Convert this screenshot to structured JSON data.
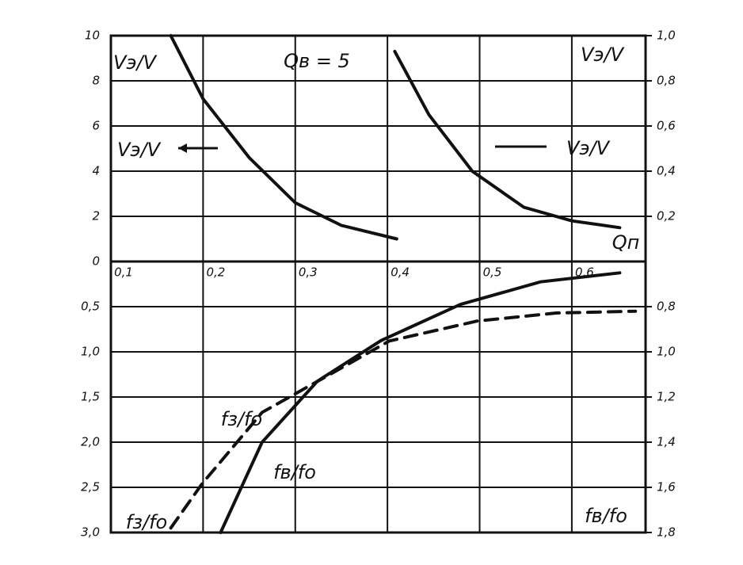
{
  "chart_data": [
    {
      "type": "line",
      "title": "Qв = 5",
      "xlabel": "Qп",
      "ylabel": "Vэ/V",
      "y2label": "Vэ/V",
      "xlim": [
        0.1,
        0.68
      ],
      "xticks": [
        {
          "value": 0.1,
          "label": "0,1"
        },
        {
          "value": 0.2,
          "label": "0,2"
        },
        {
          "value": 0.3,
          "label": "0,3"
        },
        {
          "value": 0.4,
          "label": "0,4"
        },
        {
          "value": 0.5,
          "label": "0,5"
        },
        {
          "value": 0.6,
          "label": "0,6"
        }
      ],
      "ylim": [
        0,
        10
      ],
      "yticks": [
        0,
        2,
        4,
        6,
        8,
        10
      ],
      "y2lim": [
        0,
        1.0
      ],
      "y2ticks": [
        {
          "value": 0.2,
          "label": "0,2"
        },
        {
          "value": 0.4,
          "label": "0,4"
        },
        {
          "value": 0.6,
          "label": "0,6"
        },
        {
          "value": 0.8,
          "label": "0,8"
        },
        {
          "value": 1.0,
          "label": "1,0"
        }
      ],
      "grid": true,
      "series": [
        {
          "name": "Vэ/V",
          "color": "#111111",
          "style": "solid",
          "axis": "y",
          "x": [
            0.165,
            0.2,
            0.25,
            0.3,
            0.35,
            0.41
          ],
          "values": [
            10,
            7.2,
            4.6,
            2.6,
            1.6,
            1.0
          ]
        },
        {
          "name": "Vэ/V",
          "color": "#111111",
          "style": "solid",
          "axis": "y2",
          "x": [
            0.408,
            0.445,
            0.492,
            0.548,
            0.6,
            0.652
          ],
          "values": [
            0.93,
            0.65,
            0.4,
            0.24,
            0.18,
            0.15
          ]
        }
      ]
    },
    {
      "type": "line",
      "ylabel": "fз/fо",
      "y2label": "fв/fо",
      "xlim": [
        0.1,
        0.68
      ],
      "ylim": [
        3.0,
        0
      ],
      "yticks": [
        {
          "value": 0.5,
          "label": "0,5"
        },
        {
          "value": 1.0,
          "label": "1,0"
        },
        {
          "value": 1.5,
          "label": "1,5"
        },
        {
          "value": 2.0,
          "label": "2,0"
        },
        {
          "value": 2.5,
          "label": "2,5"
        },
        {
          "value": 3.0,
          "label": "3,0"
        }
      ],
      "y2lim": [
        1.8,
        0.6
      ],
      "y2ticks": [
        {
          "value": 0.8,
          "label": "0,8"
        },
        {
          "value": 1.0,
          "label": "1,0"
        },
        {
          "value": 1.2,
          "label": "1,2"
        },
        {
          "value": 1.4,
          "label": "1,4"
        },
        {
          "value": 1.6,
          "label": "1,6"
        },
        {
          "value": 1.8,
          "label": "1,8"
        }
      ],
      "grid": true,
      "series": [
        {
          "name": "fз/fо",
          "color": "#111111",
          "style": "dashed",
          "axis": "y",
          "x": [
            0.165,
            0.199,
            0.264,
            0.341,
            0.402,
            0.497,
            0.583,
            0.669
          ],
          "values": [
            2.95,
            2.46,
            1.67,
            1.23,
            0.88,
            0.66,
            0.57,
            0.55
          ]
        },
        {
          "name": "fв/fо",
          "color": "#111111",
          "style": "solid",
          "axis": "y2",
          "x": [
            0.219,
            0.264,
            0.324,
            0.393,
            0.479,
            0.566,
            0.652
          ],
          "values": [
            1.8,
            1.4,
            1.13,
            0.95,
            0.79,
            0.69,
            0.65
          ]
        }
      ]
    }
  ]
}
